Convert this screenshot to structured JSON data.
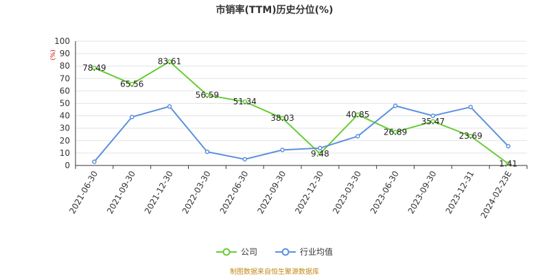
{
  "chart_data": {
    "type": "line",
    "title": "市销率(TTM)历史分位(%)",
    "ylabel": "(%)",
    "ylim": [
      0,
      100
    ],
    "yticks": [
      0,
      10,
      20,
      30,
      40,
      50,
      60,
      70,
      80,
      90,
      100
    ],
    "grid": true,
    "legend_position": "bottom",
    "categories": [
      "2021-06-30",
      "2021-09-30",
      "2021-12-30",
      "2022-03-30",
      "2022-06-30",
      "2022-09-30",
      "2022-12-30",
      "2023-03-30",
      "2023-06-30",
      "2023-09-30",
      "2023-12-31",
      "2024-02-23E"
    ],
    "series": [
      {
        "name": "公司",
        "color": "#66cc33",
        "values": [
          78.49,
          65.56,
          83.61,
          56.59,
          51.34,
          38.03,
          9.48,
          40.85,
          26.89,
          35.47,
          23.69,
          1.41
        ],
        "labels": [
          "78.49",
          "65.56",
          "83.61",
          "56.59",
          "51.34",
          "38.03",
          "9.48",
          "40.85",
          "26.89",
          "35.47",
          "23.69",
          "1.41"
        ]
      },
      {
        "name": "行业均值",
        "color": "#5b8fde",
        "values": [
          3,
          39,
          47.5,
          11,
          5,
          12.5,
          14,
          23.5,
          48,
          40,
          47,
          15.5
        ]
      }
    ]
  },
  "source_note": "制图数据来自恒生聚源数据库",
  "colors": {
    "ylabel": "#cc0000",
    "source_note": "#c08a1a",
    "grid": "#e3e3e3",
    "axis": "#333333"
  }
}
